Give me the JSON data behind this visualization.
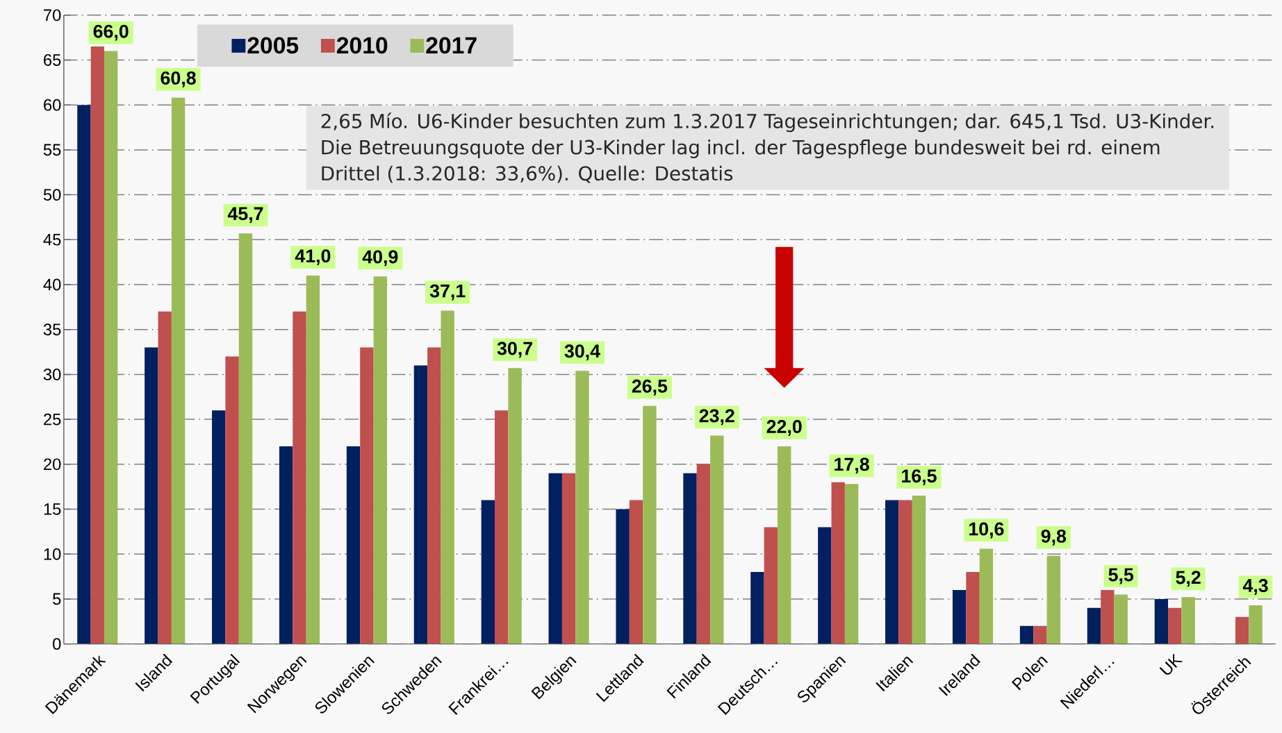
{
  "chart_data": {
    "type": "bar",
    "categories": [
      "Dänemark",
      "Island",
      "Portugal",
      "Norwegen",
      "Slowenien",
      "Schweden",
      "Frankrei…",
      "Belgien",
      "Lettland",
      "Finland",
      "Deutsch…",
      "Spanien",
      "Italien",
      "Ireland",
      "Polen",
      "Niederl…",
      "UK",
      "Österreich"
    ],
    "series": [
      {
        "name": "2005",
        "color": "#002060",
        "values": [
          60,
          33,
          26,
          22,
          22,
          31,
          16,
          19,
          15,
          19,
          8,
          13,
          16,
          6,
          2,
          4,
          5,
          null
        ]
      },
      {
        "name": "2010",
        "color": "#c0504d",
        "values": [
          66.5,
          37,
          32,
          37,
          33,
          33,
          26,
          19,
          16,
          20,
          13,
          18,
          16,
          8,
          2,
          6,
          4,
          3
        ]
      },
      {
        "name": "2017",
        "color": "#9bbb59",
        "values": [
          66.0,
          60.8,
          45.7,
          41.0,
          40.9,
          37.1,
          30.7,
          30.4,
          26.5,
          23.2,
          22.0,
          17.8,
          16.5,
          10.6,
          9.8,
          5.5,
          5.2,
          4.3
        ],
        "value_labels": [
          "66,0",
          "60,8",
          "45,7",
          "41,0",
          "40,9",
          "37,1",
          "30,7",
          "30,4",
          "26,5",
          "23,2",
          "22,0",
          "17,8",
          "16,5",
          "10,6",
          "9,8",
          "5,5",
          "5,2",
          "4,3"
        ]
      }
    ],
    "ylim": [
      0,
      70
    ],
    "yticks": [
      0,
      5,
      10,
      15,
      20,
      25,
      30,
      35,
      40,
      45,
      50,
      55,
      60,
      65,
      70
    ],
    "grid": "y",
    "legend": "top left",
    "annotations": [
      "2,65 Mío. U6-Kinder besuchten zum 1.3.2017 Tageseinrichtungen; dar. 645,1 Tsd. U3-Kinder. Die Betreuungsquote der U3-Kinder lag incl. der Tagespflege bundesweit bei rd. einem Drittel (1.3.2018: 33,6%).  Quelle: Destatis"
    ]
  }
}
